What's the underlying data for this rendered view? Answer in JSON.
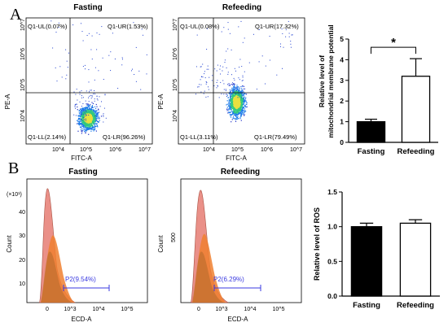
{
  "panel_labels": {
    "a": "A",
    "b": "B"
  },
  "flow": {
    "x_axis_label": "FITC-A",
    "y_axis_label": "PE-A",
    "x_ticks": [
      "10^4",
      "10^5",
      "10^6",
      "10^7"
    ],
    "y_ticks": [
      "10^4",
      "10^5",
      "10^6",
      "10^7"
    ],
    "plots": [
      {
        "title": "Fasting",
        "q_ul": "Q1-UL(0.07%)",
        "q_ur": "Q1-UR(1.53%)",
        "q_ll": "Q1-LL(2.14%)",
        "q_lr": "Q1-LR(96.26%)"
      },
      {
        "title": "Refeeding",
        "q_ul": "Q1-UL(0.08%)",
        "q_ur": "Q1-UR(17.32%)",
        "q_ll": "Q1-LL(3.11%)",
        "q_lr": "Q1-LR(79.49%)"
      }
    ]
  },
  "histo": {
    "x_axis_label": "ECD-A",
    "y_axis_label": "Count",
    "scale_note": "(×10¹)",
    "x_ticks": [
      "0",
      "10^3",
      "10^4",
      "10^5"
    ],
    "plots": [
      {
        "title": "Fasting",
        "gate": "P2(9.54%)",
        "y_ticks": [
          "10",
          "20",
          "30",
          "40"
        ]
      },
      {
        "title": "Refeeding",
        "gate": "P2(6.29%)",
        "y_ticks": [
          "500"
        ]
      }
    ]
  },
  "chart_data": [
    {
      "type": "bar",
      "categories": [
        "Fasting",
        "Refeeding"
      ],
      "values": [
        1.0,
        3.2
      ],
      "errors": [
        0.12,
        0.85
      ],
      "ylabel": "Relative level of mitochondrial membrane potential",
      "ylim": [
        0,
        5
      ],
      "y_ticks": [
        "0",
        "1",
        "2",
        "3",
        "4",
        "5"
      ],
      "significance": "*",
      "colors": [
        "#000000",
        "#ffffff"
      ]
    },
    {
      "type": "bar",
      "categories": [
        "Fasting",
        "Refeeding"
      ],
      "values": [
        1.0,
        1.05
      ],
      "errors": [
        0.05,
        0.05
      ],
      "ylabel": "Relative level of ROS",
      "ylim": [
        0,
        1.5
      ],
      "y_ticks": [
        "0.0",
        "0.5",
        "1.0",
        "1.5"
      ],
      "colors": [
        "#000000",
        "#ffffff"
      ]
    }
  ]
}
